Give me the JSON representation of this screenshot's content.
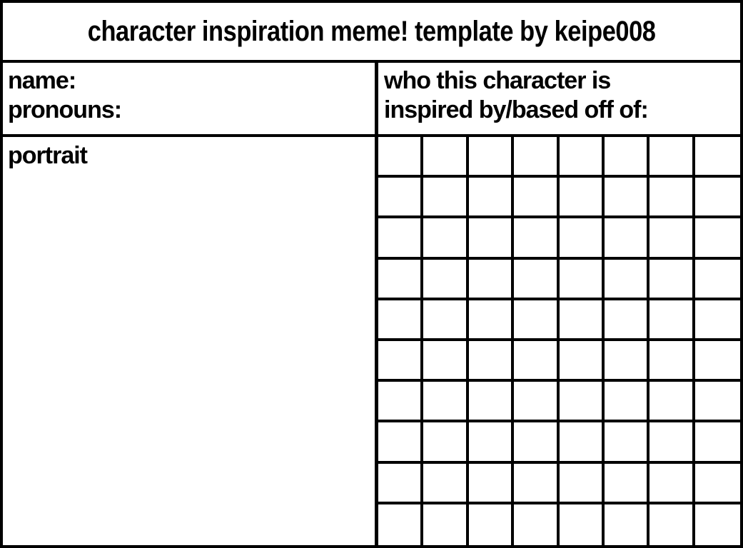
{
  "title": "character inspiration meme! template by keipe008",
  "left_panel": {
    "name_label": "name:",
    "pronouns_label": "pronouns:",
    "portrait_label": "portrait"
  },
  "right_panel": {
    "header_line1": "who this character is",
    "header_line2": "inspired by/based off of:",
    "grid": {
      "columns": 8,
      "rows": 10
    }
  },
  "colors": {
    "background": "#ffffff",
    "line": "#000000",
    "text": "#000000"
  }
}
